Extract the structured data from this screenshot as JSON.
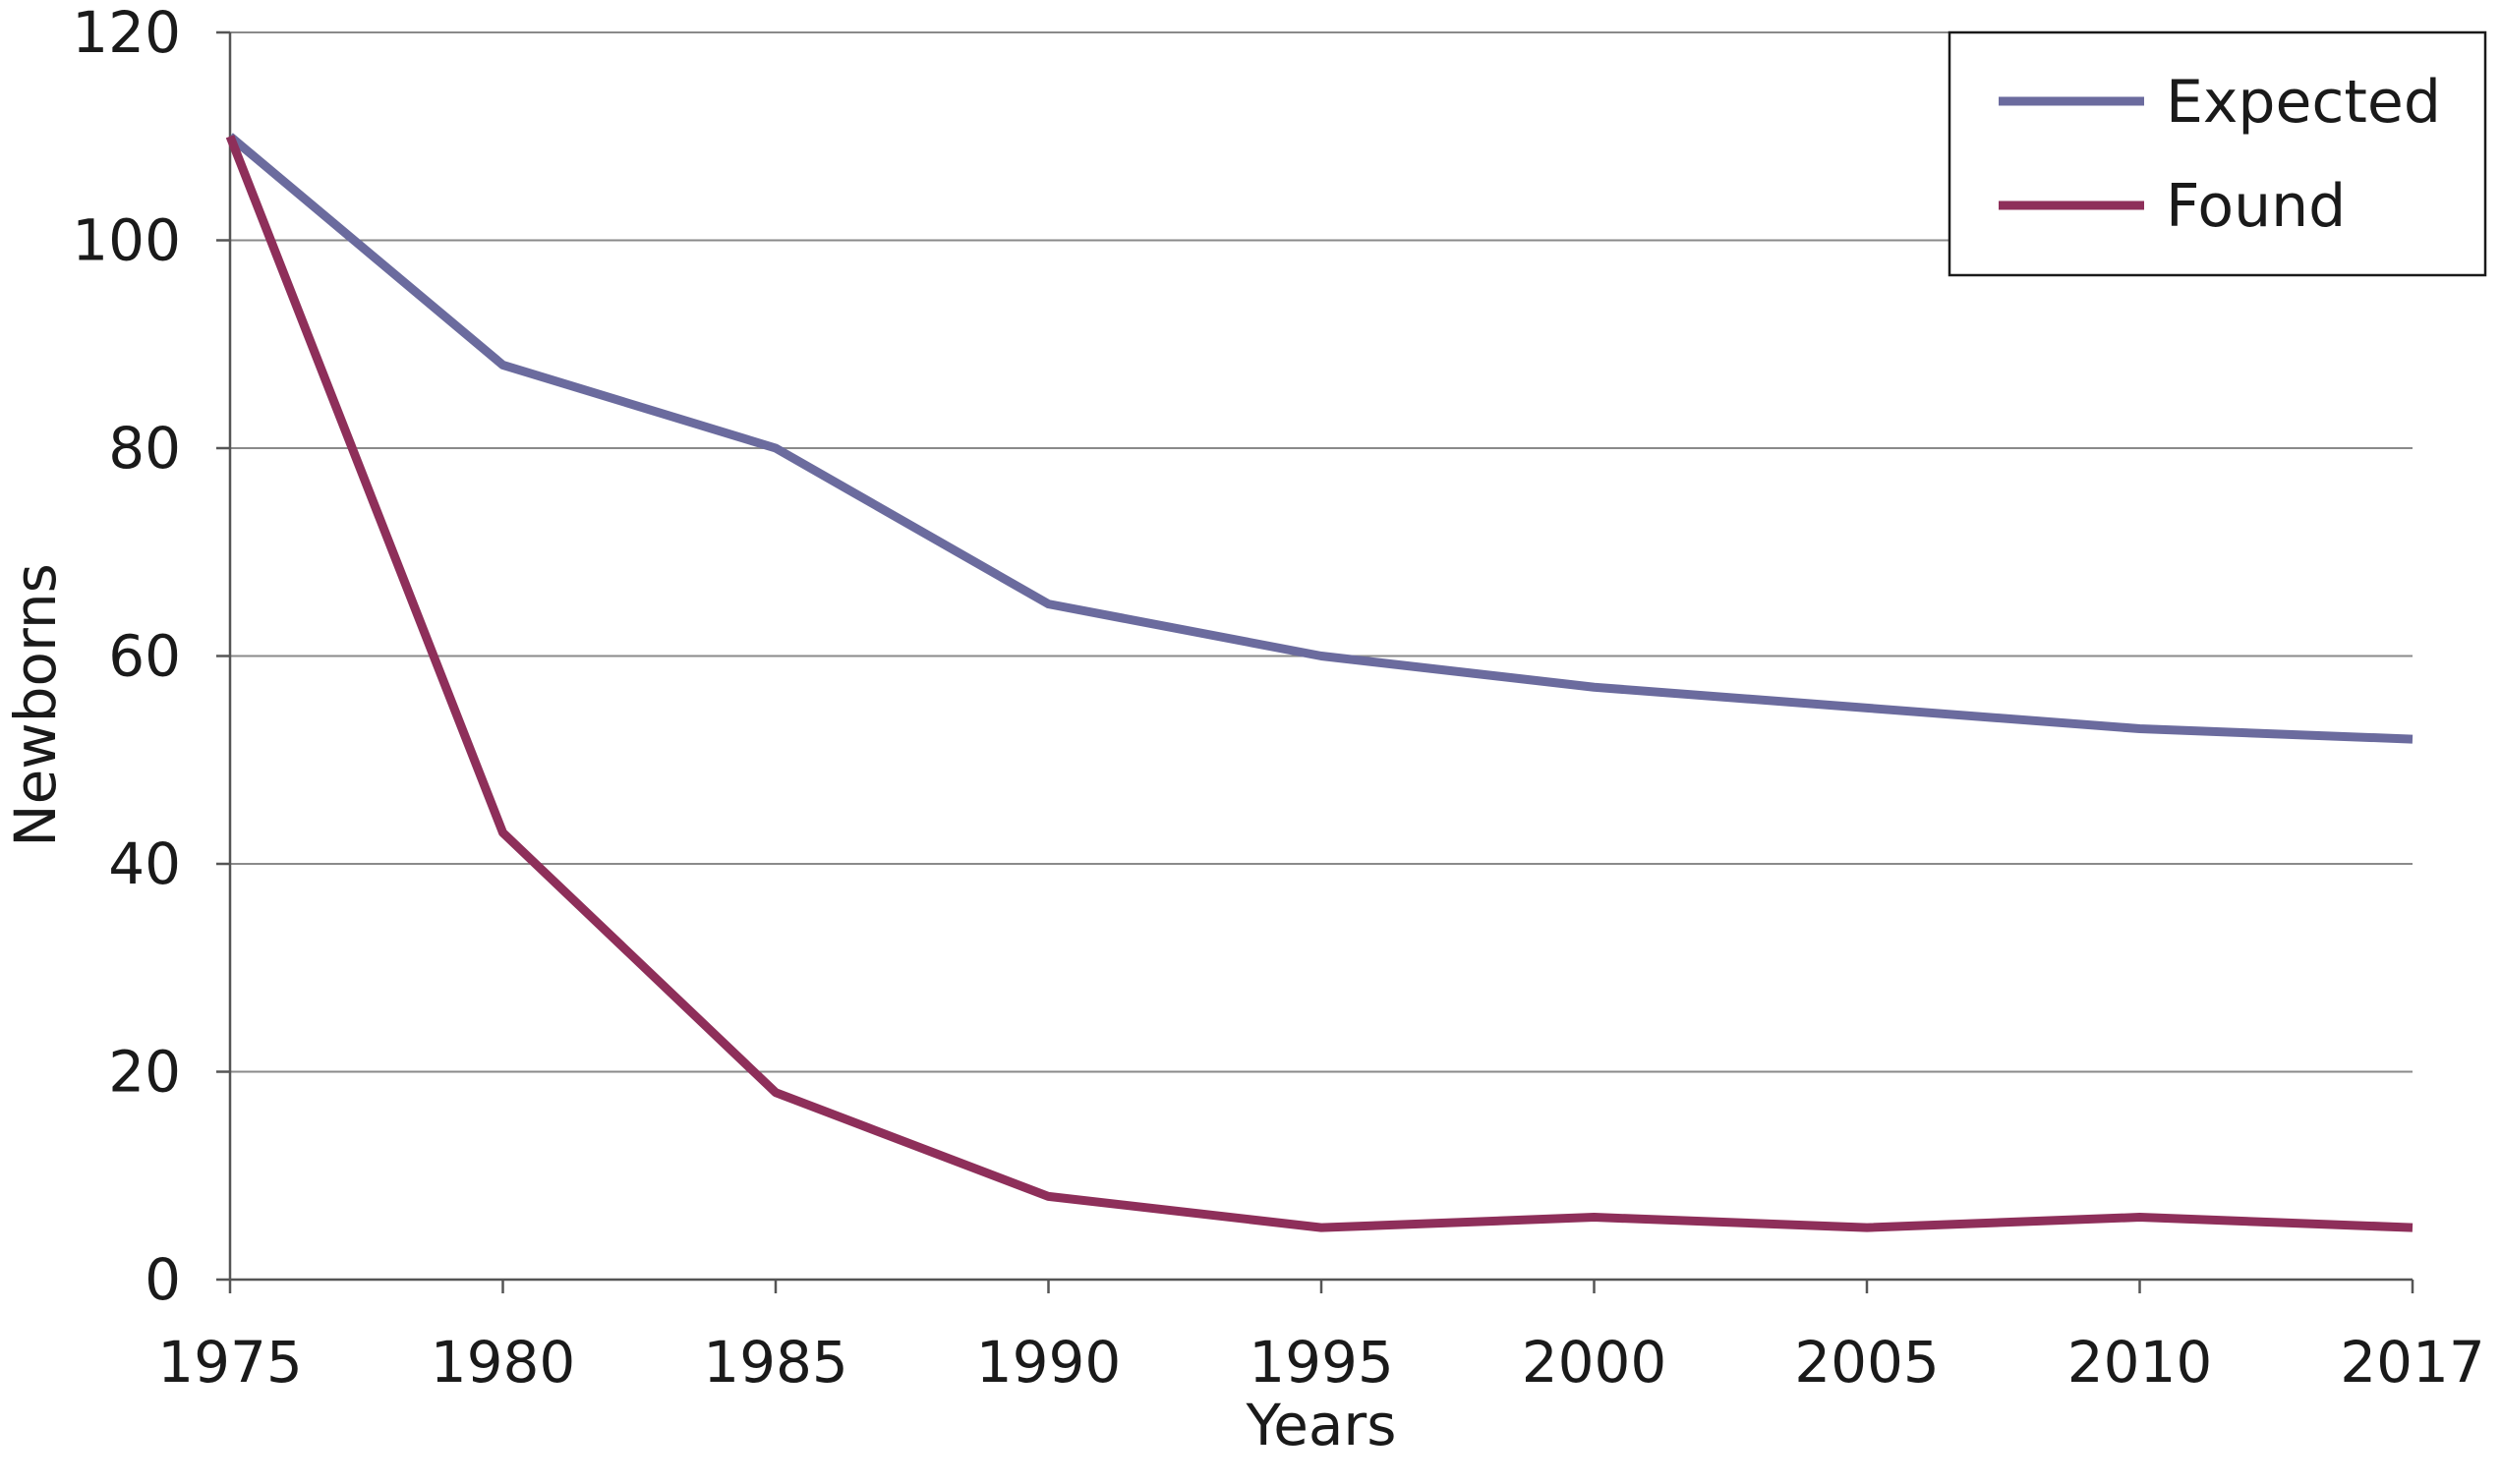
{
  "chart_data": {
    "type": "line",
    "title": "",
    "xlabel": "Years",
    "ylabel": "Newborns",
    "categories": [
      "1975",
      "1980",
      "1985",
      "1990",
      "1995",
      "2000",
      "2005",
      "2010",
      "2017"
    ],
    "ylim": [
      0,
      120
    ],
    "yticks": [
      "0",
      "20",
      "40",
      "60",
      "80",
      "100",
      "120"
    ],
    "grid": true,
    "legend_position": "top-right",
    "series": [
      {
        "name": "Expected",
        "color": "#6b6b9e",
        "values": [
          110,
          88,
          80,
          65,
          60,
          57,
          55,
          53,
          52
        ]
      },
      {
        "name": "Found",
        "color": "#8e2f5a",
        "values": [
          110,
          43,
          18,
          8,
          5,
          6,
          5,
          6,
          5
        ]
      }
    ]
  }
}
